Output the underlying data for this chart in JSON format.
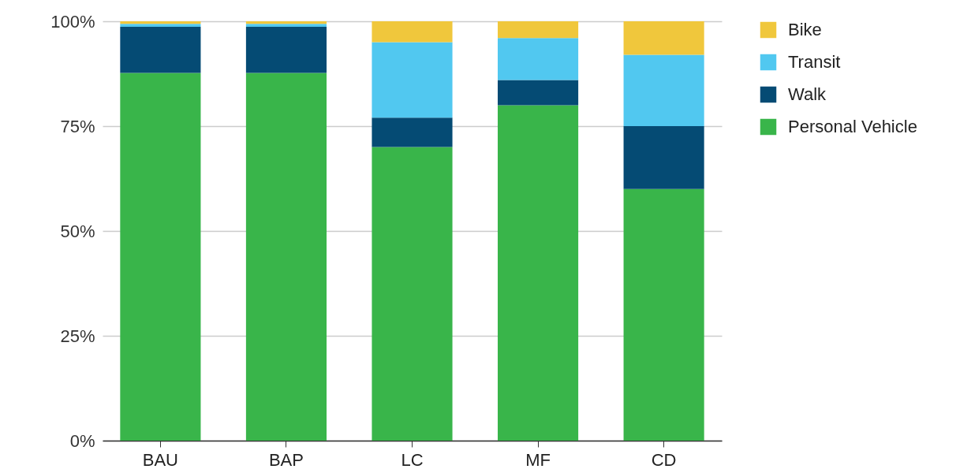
{
  "chart_data": {
    "type": "bar",
    "stacked": true,
    "categories": [
      "BAU",
      "BAP",
      "LC",
      "MF",
      "CD"
    ],
    "series": [
      {
        "name": "Personal Vehicle",
        "color": "#39b54a",
        "values": [
          87.7,
          87.7,
          70,
          80,
          60
        ]
      },
      {
        "name": "Walk",
        "color": "#054b74",
        "values": [
          11.0,
          11.0,
          7,
          6,
          15
        ]
      },
      {
        "name": "Transit",
        "color": "#51c8f0",
        "values": [
          0.7,
          0.7,
          18,
          10,
          17
        ]
      },
      {
        "name": "Bike",
        "color": "#f0c73c",
        "values": [
          0.6,
          0.6,
          5,
          4,
          8
        ]
      }
    ],
    "ylim": [
      0,
      100
    ],
    "yticks": [
      {
        "value": 0,
        "label": "0%"
      },
      {
        "value": 25,
        "label": "25%"
      },
      {
        "value": 50,
        "label": "50%"
      },
      {
        "value": 75,
        "label": "75%"
      },
      {
        "value": 100,
        "label": "100%"
      }
    ],
    "grid": "y",
    "legend": "right"
  }
}
